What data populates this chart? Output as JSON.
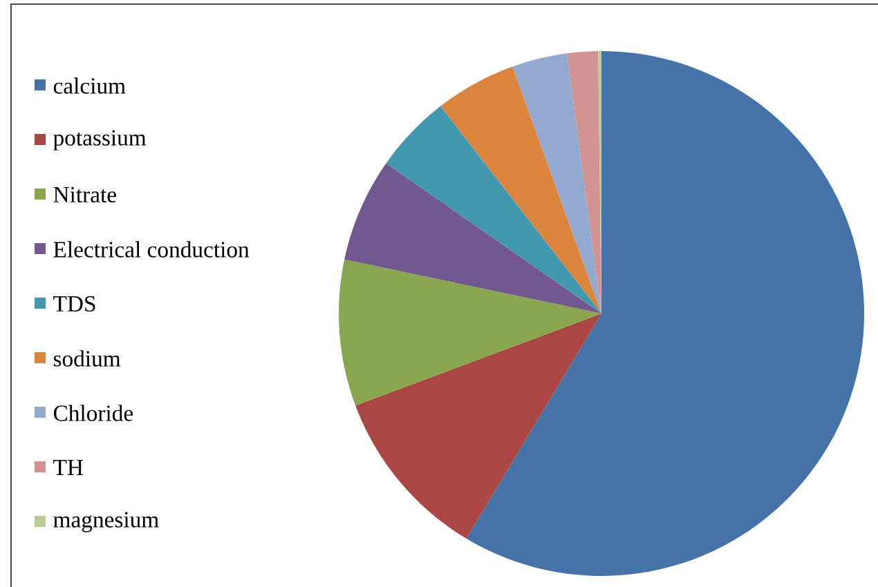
{
  "chart_data": {
    "type": "pie",
    "categories": [
      "calcium",
      "potassium",
      "Nitrate",
      "Electrical  conduction",
      "TDS",
      "sodium",
      "Chloride",
      "TH",
      "magnesium"
    ],
    "values": [
      58.6,
      10.7,
      9.0,
      6.4,
      4.8,
      5.0,
      3.4,
      1.9,
      0.2
    ],
    "colors": [
      "#4572a7",
      "#aa4643",
      "#89a54e",
      "#71588f",
      "#4198af",
      "#db843d",
      "#93a9cf",
      "#d19392",
      "#b9cd96"
    ],
    "legend": "left"
  }
}
